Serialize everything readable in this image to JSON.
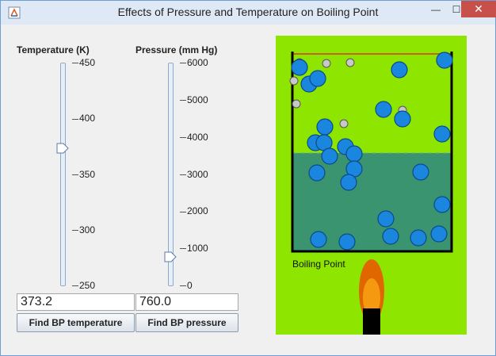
{
  "window": {
    "title": "Effects of Pressure and Temperature on Boiling Point",
    "close_glyph": "✕",
    "max_glyph": "☐",
    "min_glyph": "—"
  },
  "temperature": {
    "label": "Temperature (K)",
    "ticks": [
      "450",
      "400",
      "350",
      "300",
      "250"
    ],
    "value": 373.2,
    "min": 250,
    "max": 450,
    "field_value": "373.2",
    "button_label": "Find BP temperature"
  },
  "pressure": {
    "label": "Pressure (mm Hg)",
    "ticks": [
      "6000",
      "5000",
      "4000",
      "3000",
      "2000",
      "1000",
      "0"
    ],
    "value": 760,
    "min": 0,
    "max": 6000,
    "field_value": "760.0",
    "button_label": "Find BP pressure"
  },
  "simulation": {
    "status_label": "Boiling Point",
    "colors": {
      "background": "#8ee600",
      "liquid": "#3a9470",
      "molecule": "#1a86dd",
      "gas_particle": "#c8c8c8",
      "flame_outer": "#e06600",
      "flame_inner": "#f59a10",
      "burner": "#000000",
      "lid": "#d43a1a"
    }
  }
}
